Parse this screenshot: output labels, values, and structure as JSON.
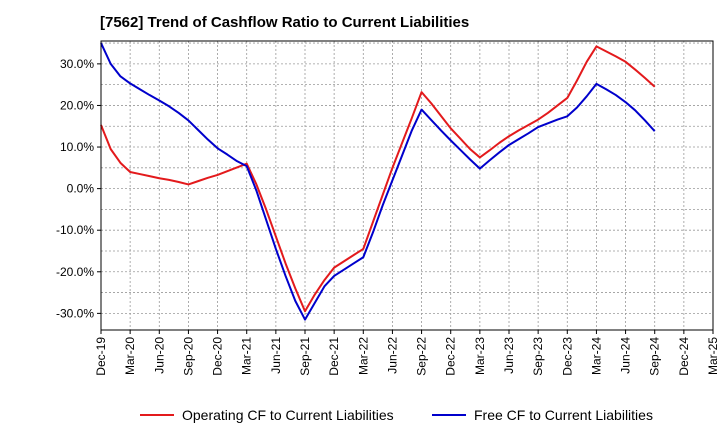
{
  "title": "[7562]  Trend of Cashflow Ratio to Current Liabilities",
  "chart_data": {
    "type": "line",
    "x": [
      "Dec-19",
      "Jan-20",
      "Feb-20",
      "Mar-20",
      "Apr-20",
      "May-20",
      "Jun-20",
      "Jul-20",
      "Aug-20",
      "Sep-20",
      "Oct-20",
      "Nov-20",
      "Dec-20",
      "Jan-21",
      "Feb-21",
      "Mar-21",
      "Apr-21",
      "May-21",
      "Jun-21",
      "Jul-21",
      "Aug-21",
      "Sep-21",
      "Oct-21",
      "Nov-21",
      "Dec-21",
      "Jan-22",
      "Feb-22",
      "Mar-22",
      "Apr-22",
      "May-22",
      "Jun-22",
      "Jul-22",
      "Aug-22",
      "Sep-22",
      "Oct-22",
      "Nov-22",
      "Dec-22",
      "Jan-23",
      "Feb-23",
      "Mar-23",
      "Apr-23",
      "May-23",
      "Jun-23",
      "Jul-23",
      "Aug-23",
      "Sep-23",
      "Oct-23",
      "Nov-23",
      "Dec-23",
      "Jan-24",
      "Feb-24",
      "Mar-24",
      "Apr-24",
      "May-24",
      "Jun-24",
      "Jul-24",
      "Aug-24",
      "Sep-24"
    ],
    "x_ticks": [
      "Dec-19",
      "Mar-20",
      "Jun-20",
      "Sep-20",
      "Dec-20",
      "Mar-21",
      "Jun-21",
      "Sep-21",
      "Dec-21",
      "Mar-22",
      "Jun-22",
      "Sep-22",
      "Dec-22",
      "Mar-23",
      "Jun-23",
      "Sep-23",
      "Dec-23",
      "Mar-24",
      "Jun-24",
      "Sep-24",
      "Dec-24",
      "Mar-25"
    ],
    "y_ticks": [
      30,
      20,
      10,
      0,
      -10,
      -20,
      -30
    ],
    "y_tick_labels": [
      "30.0%",
      "20.0%",
      "10.0%",
      "0.0%",
      "-10.0%",
      "-20.0%",
      "-30.0%"
    ],
    "ylim": [
      -34,
      35.5
    ],
    "xlim": [
      "Dec-19",
      "Mar-25"
    ],
    "grid": true,
    "legend_position": "bottom",
    "series": [
      {
        "name": "Operating CF to Current Liabilities",
        "color": "#e31a1c",
        "values": [
          15.3,
          9.5,
          6.2,
          4.0,
          3.5,
          3.0,
          2.5,
          2.1,
          1.6,
          1.0,
          1.8,
          2.6,
          3.3,
          4.2,
          5.1,
          6.0,
          1.0,
          -5.0,
          -11.5,
          -18.0,
          -24.0,
          -29.5,
          -25.5,
          -22.0,
          -19.0,
          -17.5,
          -16.0,
          -14.5,
          -8.0,
          -1.5,
          5.0,
          11.0,
          17.0,
          23.2,
          20.5,
          17.5,
          14.5,
          12.0,
          9.5,
          7.5,
          9.2,
          11.0,
          12.6,
          14.0,
          15.3,
          16.6,
          18.2,
          20.0,
          21.8,
          26.0,
          30.5,
          34.2,
          33.0,
          31.8,
          30.5,
          28.6,
          26.6,
          24.5
        ]
      },
      {
        "name": "Free CF to Current Liabilities",
        "color": "#0000cc",
        "values": [
          35.0,
          30.0,
          27.0,
          25.3,
          23.9,
          22.5,
          21.2,
          19.8,
          18.2,
          16.4,
          14.1,
          11.8,
          9.7,
          8.2,
          6.6,
          5.4,
          -0.5,
          -7.5,
          -14.5,
          -21.0,
          -27.0,
          -31.5,
          -27.5,
          -23.5,
          -21.0,
          -19.5,
          -18.0,
          -16.5,
          -10.5,
          -4.0,
          2.0,
          8.0,
          14.0,
          19.0,
          16.5,
          14.0,
          11.6,
          9.3,
          7.0,
          4.8,
          6.8,
          8.7,
          10.5,
          11.9,
          13.3,
          14.8,
          15.7,
          16.6,
          17.4,
          19.5,
          22.2,
          25.2,
          23.9,
          22.5,
          20.8,
          18.8,
          16.4,
          13.8
        ]
      }
    ]
  }
}
